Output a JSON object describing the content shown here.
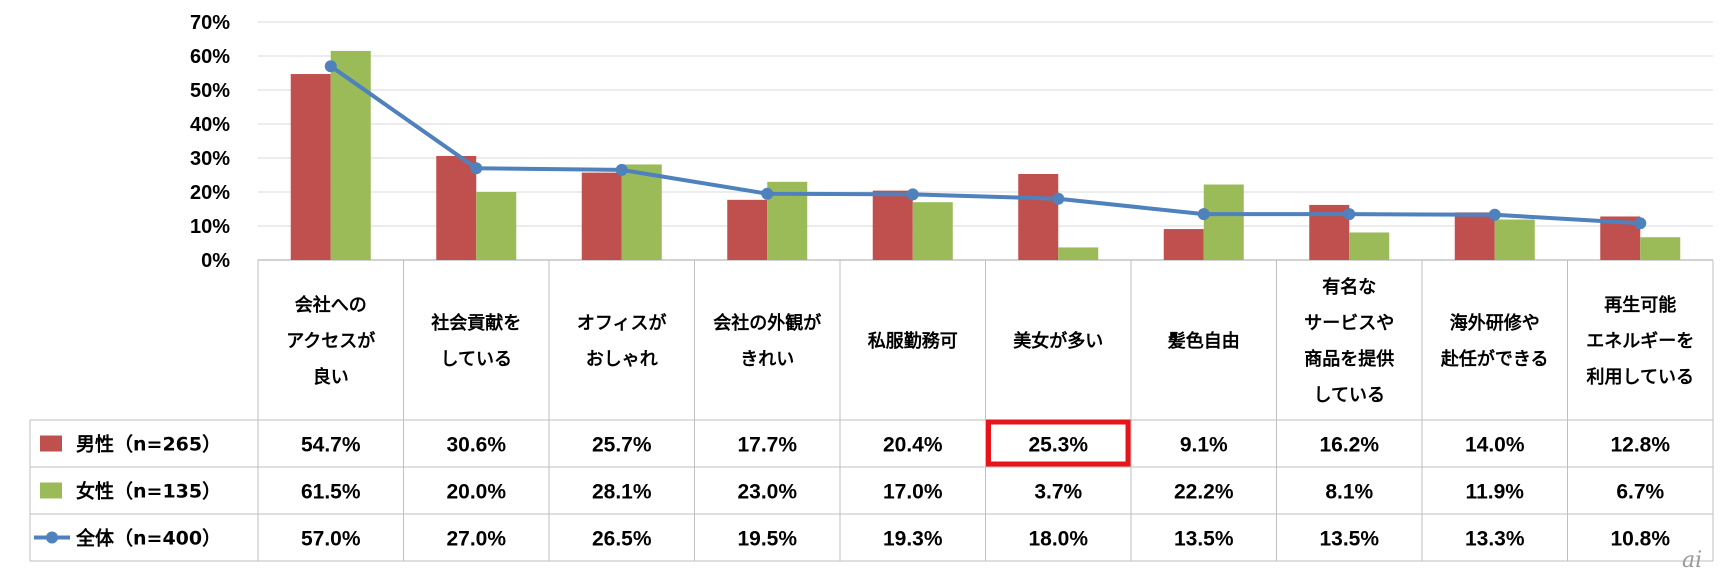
{
  "chart_data": {
    "type": "bar",
    "categories": [
      [
        "会社への",
        "アクセスが",
        "良い"
      ],
      [
        "社会貢献を",
        "している"
      ],
      [
        "オフィスが",
        "おしゃれ"
      ],
      [
        "会社の外観が",
        "きれい"
      ],
      [
        "私服勤務可"
      ],
      [
        "美女が多い"
      ],
      [
        "髪色自由"
      ],
      [
        "有名な",
        "サービスや",
        "商品を提供",
        "している"
      ],
      [
        "海外研修や",
        "赴任ができる"
      ],
      [
        "再生可能",
        "エネルギーを",
        "利用している"
      ]
    ],
    "series": [
      {
        "name": "男性（n=265）",
        "type": "bar",
        "color": "#c0504d",
        "values": [
          54.7,
          30.6,
          25.7,
          17.7,
          20.4,
          25.3,
          9.1,
          16.2,
          14.0,
          12.8
        ],
        "labels": [
          "54.7%",
          "30.6%",
          "25.7%",
          "17.7%",
          "20.4%",
          "25.3%",
          "9.1%",
          "16.2%",
          "14.0%",
          "12.8%"
        ]
      },
      {
        "name": "女性（n=135）",
        "type": "bar",
        "color": "#9bbb59",
        "values": [
          61.5,
          20.0,
          28.1,
          23.0,
          17.0,
          3.7,
          22.2,
          8.1,
          11.9,
          6.7
        ],
        "labels": [
          "61.5%",
          "20.0%",
          "28.1%",
          "23.0%",
          "17.0%",
          "3.7%",
          "22.2%",
          "8.1%",
          "11.9%",
          "6.7%"
        ]
      },
      {
        "name": "全体（n=400）",
        "type": "line",
        "color": "#4f81bd",
        "values": [
          57.0,
          27.0,
          26.5,
          19.5,
          19.3,
          18.0,
          13.5,
          13.5,
          13.3,
          10.8
        ],
        "labels": [
          "57.0%",
          "27.0%",
          "26.5%",
          "19.5%",
          "19.3%",
          "18.0%",
          "13.5%",
          "13.5%",
          "13.3%",
          "10.8%"
        ]
      }
    ],
    "y_ticks": [
      "0%",
      "10%",
      "20%",
      "30%",
      "40%",
      "50%",
      "60%",
      "70%"
    ],
    "ylim": [
      0,
      70
    ],
    "grid": "horizontal",
    "legend": "data-table-left",
    "highlight": {
      "series": 0,
      "category": 5,
      "color": "#e8141b"
    },
    "watermark": "ai"
  }
}
